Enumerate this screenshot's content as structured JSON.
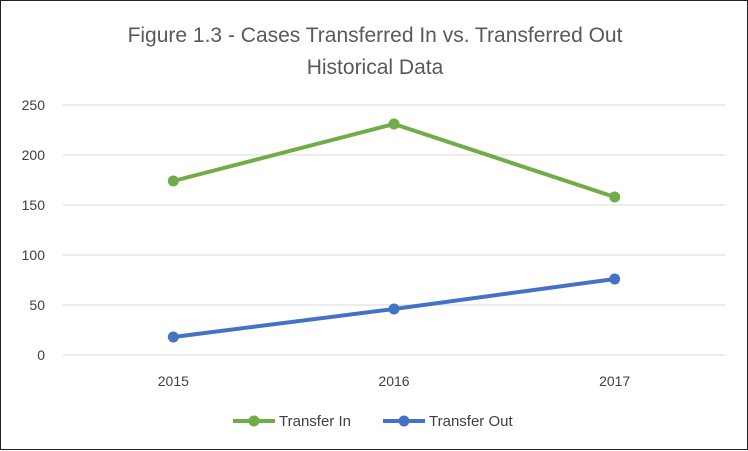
{
  "chart_data": {
    "type": "line",
    "title": "Figure 1.3 - Cases Transferred In vs. Transferred Out",
    "subtitle": "Historical Data",
    "xlabel": "",
    "ylabel": "",
    "categories": [
      "2015",
      "2016",
      "2017"
    ],
    "ylim": [
      0,
      250
    ],
    "yticks": [
      0,
      50,
      100,
      150,
      200,
      250
    ],
    "grid": true,
    "legend_position": "bottom",
    "series": [
      {
        "name": "Transfer In",
        "color": "#70ad47",
        "values": [
          174,
          231,
          158
        ]
      },
      {
        "name": "Transfer Out",
        "color": "#4472c4",
        "values": [
          18,
          46,
          76
        ]
      }
    ]
  }
}
